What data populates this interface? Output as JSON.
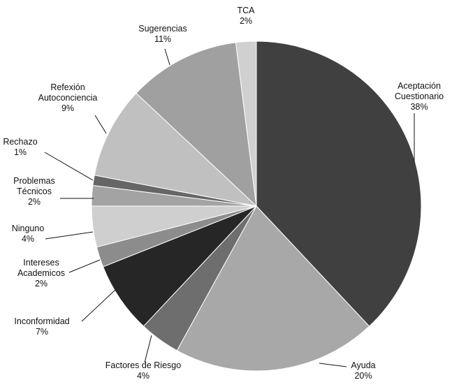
{
  "chart_data": {
    "type": "pie",
    "title": "",
    "start": "top",
    "direction": "clockwise",
    "slices": [
      {
        "label": [
          "Aceptación",
          "Cuestionario"
        ],
        "value": 38,
        "value_label": "38%",
        "color": "#404040"
      },
      {
        "label": [
          "Ayuda"
        ],
        "value": 20,
        "value_label": "20%",
        "color": "#a8a8a8"
      },
      {
        "label": [
          "Factores de Riesgo"
        ],
        "value": 4,
        "value_label": "4%",
        "color": "#6e6e6e"
      },
      {
        "label": [
          "Inconformidad"
        ],
        "value": 7,
        "value_label": "7%",
        "color": "#262626"
      },
      {
        "label": [
          "Intereses",
          "Academicos"
        ],
        "value": 2,
        "value_label": "2%",
        "color": "#8c8c8c"
      },
      {
        "label": [
          "Ninguno"
        ],
        "value": 4,
        "value_label": "4%",
        "color": "#cfcfcf"
      },
      {
        "label": [
          "Problemas",
          "Técnicos"
        ],
        "value": 2,
        "value_label": "2%",
        "color": "#a3a3a3"
      },
      {
        "label": [
          "Rechazo"
        ],
        "value": 1,
        "value_label": "1%",
        "color": "#666666"
      },
      {
        "label": [
          "Refexión",
          "Autoconciencia"
        ],
        "value": 9,
        "value_label": "9%",
        "color": "#c0c0c0"
      },
      {
        "label": [
          "Sugerencias"
        ],
        "value": 11,
        "value_label": "11%",
        "color": "#a0a0a0"
      },
      {
        "label": [
          "TCA"
        ],
        "value": 2,
        "value_label": "2%",
        "color": "#d0d0d0"
      }
    ]
  }
}
